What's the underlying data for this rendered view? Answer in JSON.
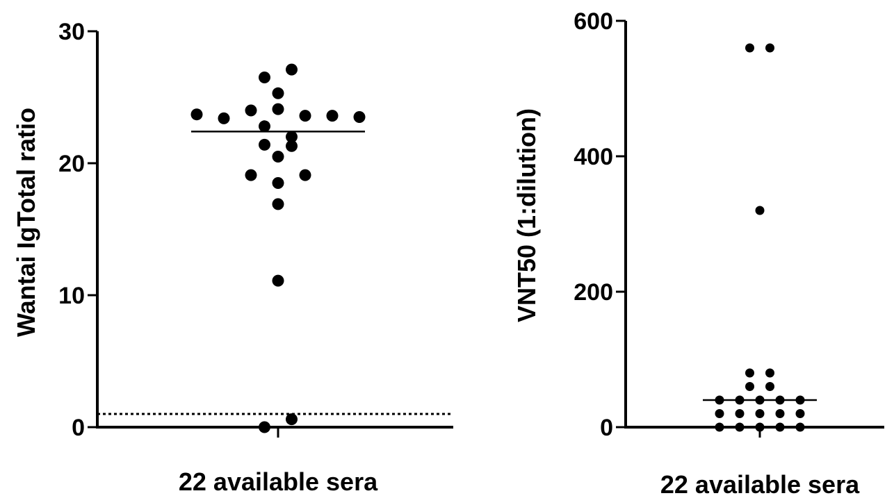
{
  "chart_data": [
    {
      "type": "scatter",
      "title": "",
      "ylabel": "Wantai IgTotal ratio",
      "xlabel": "",
      "categories": [
        "22 available sera"
      ],
      "ylim": [
        0,
        30
      ],
      "yticks": [
        "0",
        "10",
        "20",
        "30"
      ],
      "median": 22.4,
      "cutoff": 1.0,
      "values": [
        23.7,
        23.4,
        24.0,
        22.8,
        21.4,
        19.1,
        26.5,
        25.3,
        24.1,
        22.0,
        20.5,
        18.5,
        16.9,
        11.1,
        27.1,
        23.6,
        21.3,
        19.1,
        23.6,
        23.5,
        0.0,
        0.6
      ]
    },
    {
      "type": "scatter",
      "title": "",
      "ylabel": "VNT50 (1:dilution)",
      "xlabel": "",
      "categories": [
        "22 available sera"
      ],
      "ylim": [
        0,
        600
      ],
      "yticks": [
        "0",
        "200",
        "400",
        "600"
      ],
      "median": 40,
      "values": [
        560,
        560,
        320,
        80,
        80,
        60,
        60,
        40,
        40,
        40,
        40,
        40,
        20,
        20,
        20,
        20,
        20,
        0,
        0,
        0,
        0,
        0
      ]
    }
  ]
}
